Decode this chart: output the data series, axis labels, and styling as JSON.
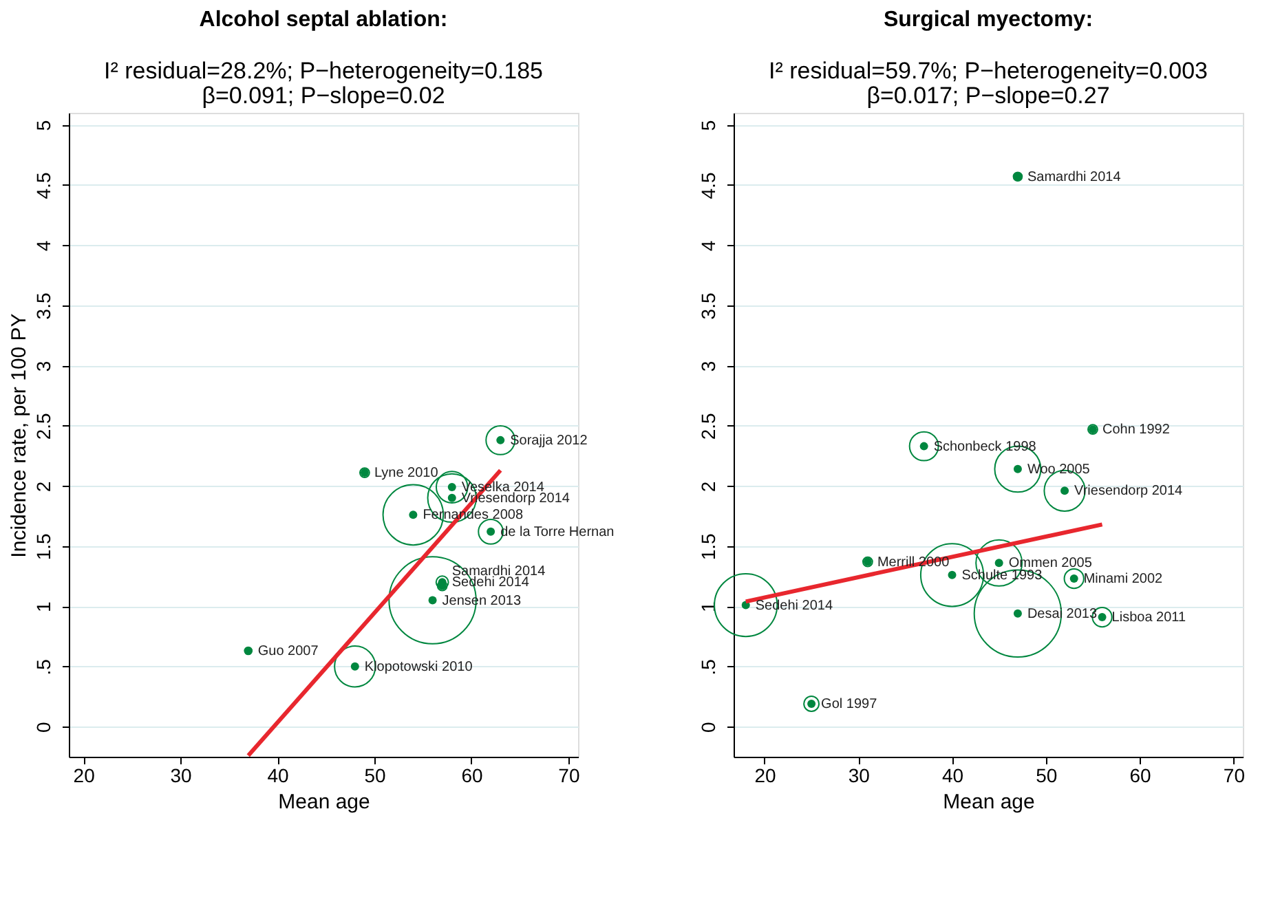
{
  "chart_data": [
    {
      "type": "bubble",
      "title": "Alcohol septal ablation:",
      "subtitle": "I² residual=28.2%; P−heterogeneity=0.185\nβ=0.091; P−slope=0.02",
      "xlabel": "Mean age",
      "ylabel": "Incidence rate, per 100 PY",
      "xlim": [
        18.5,
        71
      ],
      "ylim": [
        -0.25,
        5.1
      ],
      "xticks": [
        20,
        30,
        40,
        50,
        60,
        70
      ],
      "yticks": [
        0,
        {
          "value": 0.5,
          "label": ".5"
        },
        1,
        1.5,
        2,
        2.5,
        3,
        3.5,
        4,
        4.5,
        5
      ],
      "grid": "y",
      "series": [
        {
          "color": "#00873f",
          "x": [
            63,
            49,
            58,
            58,
            54,
            62,
            57,
            57,
            56,
            37,
            48
          ],
          "values": [
            2.38,
            2.11,
            1.99,
            1.9,
            1.76,
            1.62,
            1.2,
            1.17,
            1.05,
            0.63,
            0.5
          ],
          "sizes": [
            0.11,
            0.012,
            0.13,
            0.31,
            0.48,
            0.08,
            0.02,
            0.012,
            1,
            0.007,
            0.22
          ]
        },
        {
          "type": "line",
          "color": "#e8272e",
          "x": [
            37,
            63
          ],
          "values": [
            -0.24,
            2.13
          ]
        }
      ],
      "annotations": [
        {
          "text": "Sorajja 2012",
          "x": 63,
          "y": 2.38
        },
        {
          "text": "Lyne 2010",
          "x": 49,
          "y": 2.11
        },
        {
          "text": "Veselka 2014",
          "x": 58,
          "y": 1.99
        },
        {
          "text": "Vriesendorp 2014",
          "x": 58,
          "y": 1.9
        },
        {
          "text": "Fernandes 2008",
          "x": 54,
          "y": 1.76
        },
        {
          "text": "de la Torre Hernan",
          "x": 62,
          "y": 1.62
        },
        {
          "text": "Sedehi 2014",
          "x": 57,
          "y": 1.2
        },
        {
          "text": "Samardhi 2014",
          "x": 57,
          "y": 1.17
        },
        {
          "text": "Jensen 2013",
          "x": 56,
          "y": 1.05
        },
        {
          "text": "Guo 2007",
          "x": 37,
          "y": 0.63
        },
        {
          "text": "Klopotowski 2010",
          "x": 48,
          "y": 0.5
        }
      ]
    },
    {
      "type": "bubble",
      "title": "Surgical myectomy:",
      "subtitle": "I² residual=59.7%; P−heterogeneity=0.003\nβ=0.017; P−slope=0.27",
      "xlabel": "Mean age",
      "xlim": [
        16.7,
        71
      ],
      "ylim": [
        -0.25,
        5.1
      ],
      "xticks": [
        20,
        30,
        40,
        50,
        60,
        70
      ],
      "yticks": [
        0,
        {
          "value": 0.5,
          "label": ".5"
        },
        1,
        1.5,
        2,
        2.5,
        3,
        3.5,
        4,
        4.5,
        5
      ],
      "grid": "y",
      "series": [
        {
          "color": "#00873f",
          "x": [
            47,
            55,
            37,
            47,
            52,
            31,
            45,
            40,
            53,
            18,
            47,
            56,
            25
          ],
          "values": [
            4.57,
            2.47,
            2.33,
            2.14,
            1.96,
            1.37,
            1.36,
            1.26,
            1.23,
            1.01,
            0.94,
            0.91,
            0.19
          ],
          "sizes": [
            0.01,
            0.012,
            0.11,
            0.28,
            0.22,
            0.012,
            0.28,
            0.52,
            0.05,
            0.52,
            1,
            0.05,
            0.03
          ]
        },
        {
          "type": "line",
          "color": "#e8272e",
          "x": [
            18,
            56
          ],
          "values": [
            1.04,
            1.68
          ]
        }
      ],
      "annotations": [
        {
          "text": "Samardhi 2014",
          "x": 47,
          "y": 4.57
        },
        {
          "text": "Cohn 1992",
          "x": 55,
          "y": 2.47
        },
        {
          "text": "Schonbeck 1998",
          "x": 37,
          "y": 2.33
        },
        {
          "text": "Woo 2005",
          "x": 47,
          "y": 2.14
        },
        {
          "text": "Vriesendorp 2014",
          "x": 52,
          "y": 1.96
        },
        {
          "text": "Merrill 2000",
          "x": 31,
          "y": 1.37
        },
        {
          "text": "Ommen 2005",
          "x": 45,
          "y": 1.36
        },
        {
          "text": "Schulte 1993",
          "x": 40,
          "y": 1.26
        },
        {
          "text": "Minami 2002",
          "x": 53,
          "y": 1.23
        },
        {
          "text": "Sedehi 2014",
          "x": 18,
          "y": 1.01
        },
        {
          "text": "Desai 2013",
          "x": 47,
          "y": 0.94
        },
        {
          "text": "Lisboa 2011",
          "x": 56,
          "y": 0.91
        },
        {
          "text": "Gol 1997",
          "x": 25,
          "y": 0.19
        }
      ]
    }
  ]
}
